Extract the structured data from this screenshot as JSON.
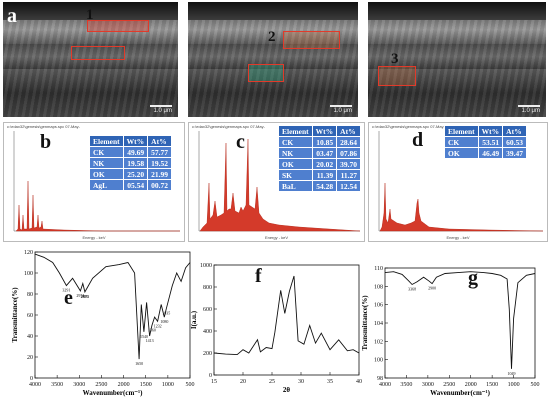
{
  "panels": {
    "a": {
      "label": "a",
      "scale_label": "1.0 μm",
      "region_label": "1"
    },
    "a2": {
      "scale_label": "1.0 μm",
      "region_label": "2"
    },
    "a3": {
      "scale_label": "1.0 μm",
      "region_label": "3"
    },
    "b": {
      "label": "b",
      "header": "c:\\edax32\\genesis\\genmaps.spc 07-May-",
      "energy_label": "Energy - keV",
      "table": {
        "headers": [
          "Element",
          "Wt%",
          "At%"
        ],
        "rows": [
          [
            "CK",
            "49.69",
            "57.77"
          ],
          [
            "NK",
            "19.58",
            "19.52"
          ],
          [
            "OK",
            "25.20",
            "21.99"
          ],
          [
            "AgL",
            "05.54",
            "00.72"
          ]
        ]
      }
    },
    "c": {
      "label": "c",
      "header": "c:\\edax32\\genesis\\genmaps.spc 07-May-",
      "energy_label": "Energy - keV",
      "table": {
        "headers": [
          "Element",
          "Wt%",
          "At%"
        ],
        "rows": [
          [
            "CK",
            "10.85",
            "28.64"
          ],
          [
            "NK",
            "03.47",
            "07.86"
          ],
          [
            "OK",
            "20.02",
            "39.70"
          ],
          [
            "SK",
            "11.39",
            "11.27"
          ],
          [
            "BaL",
            "54.28",
            "12.54"
          ]
        ]
      }
    },
    "d": {
      "label": "d",
      "header": "c:\\edax32\\genesis\\genmaps.spc 07-May-",
      "energy_label": "Energy - keV",
      "table": {
        "headers": [
          "Element",
          "Wt%",
          "At%"
        ],
        "rows": [
          [
            "CK",
            "53.51",
            "60.53"
          ],
          [
            "OK",
            "46.49",
            "39.47"
          ]
        ]
      }
    }
  },
  "chart_data": [
    {
      "type": "line",
      "panel": "e",
      "xlabel": "Wavenumber(cm⁻¹)",
      "ylabel": "Transmittance(%)",
      "xlim": [
        4000,
        500
      ],
      "ylim": [
        0,
        120
      ],
      "xticks": [
        4000,
        3500,
        3000,
        2500,
        2000,
        1500,
        1000,
        500
      ],
      "yticks": [
        0,
        20,
        40,
        60,
        80,
        100,
        120
      ],
      "annotations": [
        "3291",
        "2974",
        "2880",
        "2873",
        "1650",
        "1540",
        "1413",
        "1360",
        "1232",
        "1080",
        "1035"
      ],
      "x": [
        4000,
        3800,
        3600,
        3450,
        3291,
        3150,
        2974,
        2920,
        2873,
        2700,
        2400,
        2100,
        1900,
        1750,
        1650,
        1600,
        1540,
        1480,
        1413,
        1360,
        1300,
        1232,
        1150,
        1080,
        1035,
        900,
        800,
        700,
        600,
        500
      ],
      "y": [
        118,
        115,
        110,
        100,
        88,
        95,
        83,
        90,
        82,
        95,
        106,
        108,
        110,
        100,
        18,
        70,
        44,
        72,
        40,
        50,
        58,
        54,
        70,
        58,
        66,
        88,
        100,
        92,
        105,
        110
      ]
    },
    {
      "type": "line",
      "panel": "f",
      "xlabel": "2θ",
      "ylabel": "I(a.u.)",
      "xlim": [
        15,
        40
      ],
      "ylim": [
        0,
        1000
      ],
      "xticks": [
        15,
        20,
        25,
        30,
        35,
        40
      ],
      "yticks": [
        0,
        200,
        400,
        600,
        800,
        1000
      ],
      "x": [
        15,
        17,
        19,
        20,
        21,
        22.5,
        23,
        24,
        25,
        25.5,
        26.5,
        27.2,
        28,
        28.8,
        29.5,
        30.5,
        31.5,
        32.5,
        33.5,
        35,
        36.5,
        38,
        39,
        40
      ],
      "y": [
        200,
        190,
        185,
        230,
        200,
        320,
        210,
        250,
        240,
        390,
        770,
        560,
        760,
        900,
        310,
        280,
        450,
        290,
        380,
        230,
        320,
        220,
        230,
        200
      ]
    },
    {
      "type": "line",
      "panel": "g",
      "xlabel": "Wavenumber(cm⁻¹)",
      "ylabel": "Transmittance(%)",
      "xlim": [
        4000,
        500
      ],
      "ylim": [
        98,
        110
      ],
      "xticks": [
        4000,
        3500,
        3000,
        2500,
        2000,
        1500,
        1000,
        500
      ],
      "yticks": [
        98,
        100,
        102,
        104,
        106,
        108,
        110
      ],
      "annotations": [
        "3368",
        "2900",
        "1049"
      ],
      "x": [
        4000,
        3800,
        3600,
        3450,
        3368,
        3250,
        3100,
        2980,
        2900,
        2800,
        2600,
        2300,
        2000,
        1700,
        1500,
        1300,
        1150,
        1100,
        1049,
        1000,
        900,
        700,
        500
      ],
      "y": [
        109.5,
        109.6,
        109.3,
        108.6,
        108.2,
        108.5,
        109.0,
        108.6,
        108.3,
        109.0,
        109.4,
        109.5,
        109.6,
        109.5,
        109.4,
        109.2,
        108.8,
        105.5,
        99.0,
        104.5,
        108.4,
        109.2,
        109.4
      ]
    }
  ],
  "chart_labels": {
    "e": "e",
    "f": "f",
    "g": "g"
  }
}
